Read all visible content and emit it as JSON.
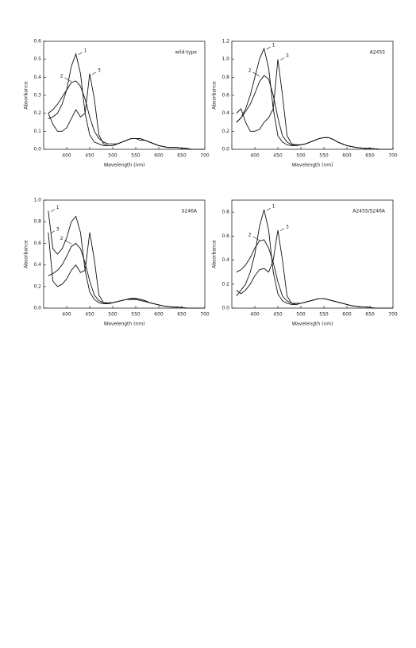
{
  "chart_data": [
    {
      "type": "line",
      "annotation": "wild-type",
      "xlabel": "Wavelength (nm)",
      "ylabel": "Absorbance",
      "x": [
        360,
        370,
        380,
        390,
        400,
        410,
        420,
        430,
        440,
        450,
        460,
        470,
        480,
        490,
        500,
        510,
        520,
        530,
        540,
        550,
        560,
        570,
        580,
        590,
        600,
        610,
        620,
        630,
        640,
        650,
        660,
        670,
        680,
        690,
        700
      ],
      "xlim": [
        350,
        700
      ],
      "xticks": [
        400,
        450,
        500,
        550,
        600,
        650,
        700
      ],
      "ylim": [
        0,
        0.6
      ],
      "yticks": [
        {
          "value": 0,
          "label": "0.0"
        },
        0.1,
        0.2,
        0.3,
        0.4,
        0.5,
        0.6
      ],
      "series": [
        {
          "name": "1",
          "color": "#111111",
          "values": [
            0.17,
            0.18,
            0.2,
            0.25,
            0.33,
            0.46,
            0.53,
            0.42,
            0.2,
            0.08,
            0.04,
            0.03,
            0.02,
            0.02,
            0.02,
            0.03,
            0.04,
            0.05,
            0.06,
            0.06,
            0.06,
            0.05,
            0.04,
            0.03,
            0.02,
            0.015,
            0.01,
            0.01,
            0.01,
            0.005,
            0.005,
            0,
            0,
            0,
            0
          ]
        },
        {
          "name": "2",
          "color": "#111111",
          "values": [
            0.2,
            0.22,
            0.25,
            0.29,
            0.33,
            0.37,
            0.38,
            0.35,
            0.28,
            0.18,
            0.1,
            0.06,
            0.04,
            0.03,
            0.03,
            0.03,
            0.04,
            0.05,
            0.06,
            0.06,
            0.06,
            0.05,
            0.04,
            0.03,
            0.02,
            0.015,
            0.01,
            0.01,
            0.01,
            0.005,
            0.005,
            0,
            0,
            0,
            0
          ]
        },
        {
          "name": "3",
          "color": "#111111",
          "values": [
            0.2,
            0.14,
            0.1,
            0.1,
            0.12,
            0.17,
            0.22,
            0.18,
            0.2,
            0.42,
            0.28,
            0.08,
            0.03,
            0.02,
            0.02,
            0.03,
            0.04,
            0.05,
            0.06,
            0.06,
            0.05,
            0.05,
            0.04,
            0.03,
            0.02,
            0.015,
            0.01,
            0.01,
            0.01,
            0.005,
            0.005,
            0,
            0,
            0,
            0
          ]
        }
      ]
    },
    {
      "type": "line",
      "annotation": "A245S",
      "xlabel": "Wavelength (nm)",
      "ylabel": "Absorbance",
      "x": [
        360,
        370,
        380,
        390,
        400,
        410,
        420,
        430,
        440,
        450,
        460,
        470,
        480,
        490,
        500,
        510,
        520,
        530,
        540,
        550,
        560,
        570,
        580,
        590,
        600,
        610,
        620,
        630,
        640,
        650,
        660,
        670,
        680,
        690,
        700
      ],
      "xlim": [
        350,
        700
      ],
      "xticks": [
        400,
        450,
        500,
        550,
        600,
        650,
        700
      ],
      "ylim": [
        0,
        1.2
      ],
      "yticks": [
        {
          "value": 0,
          "label": "0.0"
        },
        0.2,
        0.4,
        0.6,
        0.8,
        {
          "value": 1,
          "label": "1.0"
        },
        1.2
      ],
      "series": [
        {
          "name": "1",
          "color": "#111111",
          "values": [
            0.3,
            0.35,
            0.45,
            0.6,
            0.8,
            1.0,
            1.12,
            0.9,
            0.45,
            0.15,
            0.08,
            0.05,
            0.04,
            0.04,
            0.05,
            0.06,
            0.08,
            0.1,
            0.12,
            0.13,
            0.13,
            0.11,
            0.08,
            0.06,
            0.04,
            0.03,
            0.02,
            0.015,
            0.01,
            0.01,
            0.005,
            0,
            0,
            0,
            0
          ]
        },
        {
          "name": "2",
          "color": "#111111",
          "values": [
            0.3,
            0.35,
            0.42,
            0.5,
            0.62,
            0.75,
            0.82,
            0.78,
            0.6,
            0.35,
            0.15,
            0.08,
            0.05,
            0.05,
            0.05,
            0.06,
            0.08,
            0.1,
            0.12,
            0.13,
            0.13,
            0.11,
            0.08,
            0.06,
            0.04,
            0.03,
            0.02,
            0.015,
            0.01,
            0.01,
            0.005,
            0,
            0,
            0,
            0
          ]
        },
        {
          "name": "3",
          "color": "#111111",
          "values": [
            0.4,
            0.45,
            0.3,
            0.2,
            0.2,
            0.22,
            0.3,
            0.35,
            0.45,
            1.0,
            0.6,
            0.15,
            0.06,
            0.05,
            0.05,
            0.06,
            0.08,
            0.1,
            0.12,
            0.13,
            0.13,
            0.11,
            0.08,
            0.06,
            0.04,
            0.03,
            0.02,
            0.015,
            0.01,
            0.01,
            0.005,
            0,
            0,
            0,
            0
          ]
        }
      ]
    },
    {
      "type": "line",
      "annotation": "S246A",
      "xlabel": "Wavelength (nm)",
      "ylabel": "Absorbance",
      "x": [
        360,
        370,
        380,
        390,
        400,
        410,
        420,
        430,
        440,
        450,
        460,
        470,
        480,
        490,
        500,
        510,
        520,
        530,
        540,
        550,
        560,
        570,
        580,
        590,
        600,
        610,
        620,
        630,
        640,
        650,
        660,
        670,
        680,
        690,
        700
      ],
      "xlim": [
        350,
        700
      ],
      "xticks": [
        400,
        450,
        500,
        550,
        600,
        650,
        700
      ],
      "ylim": [
        0,
        1
      ],
      "yticks": [
        {
          "value": 0,
          "label": "0.0"
        },
        0.2,
        0.4,
        0.6,
        0.8,
        {
          "value": 1,
          "label": "1.0"
        }
      ],
      "series": [
        {
          "name": "1",
          "color": "#111111",
          "values": [
            0.9,
            0.55,
            0.5,
            0.55,
            0.65,
            0.8,
            0.85,
            0.7,
            0.35,
            0.15,
            0.08,
            0.05,
            0.04,
            0.04,
            0.05,
            0.06,
            0.07,
            0.08,
            0.09,
            0.09,
            0.08,
            0.07,
            0.05,
            0.04,
            0.03,
            0.02,
            0.015,
            0.01,
            0.01,
            0.005,
            0,
            0,
            0,
            0,
            0
          ]
        },
        {
          "name": "2",
          "color": "#111111",
          "values": [
            0.3,
            0.32,
            0.35,
            0.4,
            0.48,
            0.57,
            0.6,
            0.55,
            0.42,
            0.25,
            0.12,
            0.07,
            0.05,
            0.05,
            0.05,
            0.06,
            0.07,
            0.08,
            0.09,
            0.09,
            0.08,
            0.07,
            0.05,
            0.04,
            0.03,
            0.02,
            0.015,
            0.01,
            0.01,
            0.005,
            0,
            0,
            0,
            0,
            0
          ]
        },
        {
          "name": "3",
          "color": "#111111",
          "values": [
            0.7,
            0.25,
            0.2,
            0.22,
            0.27,
            0.35,
            0.4,
            0.33,
            0.35,
            0.7,
            0.45,
            0.12,
            0.05,
            0.04,
            0.05,
            0.06,
            0.07,
            0.08,
            0.08,
            0.08,
            0.07,
            0.06,
            0.05,
            0.04,
            0.03,
            0.02,
            0.015,
            0.01,
            0.01,
            0.005,
            0,
            0,
            0,
            0,
            0
          ]
        }
      ]
    },
    {
      "type": "line",
      "annotation": "A245S/S246A",
      "xlabel": "Wavelength (nm)",
      "ylabel": "Absorbance",
      "x": [
        360,
        370,
        380,
        390,
        400,
        410,
        420,
        430,
        440,
        450,
        460,
        470,
        480,
        490,
        500,
        510,
        520,
        530,
        540,
        550,
        560,
        570,
        580,
        590,
        600,
        610,
        620,
        630,
        640,
        650,
        660,
        670,
        680,
        690,
        700
      ],
      "xlim": [
        350,
        700
      ],
      "xticks": [
        400,
        450,
        500,
        550,
        600,
        650,
        700
      ],
      "ylim": [
        0,
        0.9
      ],
      "yticks": [
        {
          "value": 0,
          "label": "0.0"
        },
        0.2,
        0.4,
        0.6,
        0.8
      ],
      "series": [
        {
          "name": "1",
          "color": "#111111",
          "values": [
            0.1,
            0.15,
            0.2,
            0.3,
            0.45,
            0.68,
            0.82,
            0.65,
            0.3,
            0.12,
            0.06,
            0.04,
            0.03,
            0.03,
            0.04,
            0.05,
            0.06,
            0.07,
            0.08,
            0.08,
            0.07,
            0.06,
            0.05,
            0.04,
            0.03,
            0.02,
            0.015,
            0.01,
            0.01,
            0.005,
            0,
            0,
            0,
            0,
            0
          ]
        },
        {
          "name": "2",
          "color": "#111111",
          "values": [
            0.3,
            0.32,
            0.36,
            0.42,
            0.5,
            0.56,
            0.57,
            0.5,
            0.38,
            0.22,
            0.1,
            0.06,
            0.04,
            0.04,
            0.04,
            0.05,
            0.06,
            0.07,
            0.08,
            0.08,
            0.07,
            0.06,
            0.05,
            0.04,
            0.03,
            0.02,
            0.015,
            0.01,
            0.01,
            0.005,
            0,
            0,
            0,
            0,
            0
          ]
        },
        {
          "name": "3",
          "color": "#111111",
          "values": [
            0.15,
            0.12,
            0.15,
            0.2,
            0.27,
            0.32,
            0.33,
            0.3,
            0.4,
            0.65,
            0.4,
            0.1,
            0.04,
            0.03,
            0.04,
            0.05,
            0.06,
            0.07,
            0.08,
            0.08,
            0.07,
            0.06,
            0.05,
            0.04,
            0.03,
            0.02,
            0.015,
            0.01,
            0.01,
            0.005,
            0,
            0,
            0,
            0,
            0
          ]
        }
      ]
    }
  ]
}
